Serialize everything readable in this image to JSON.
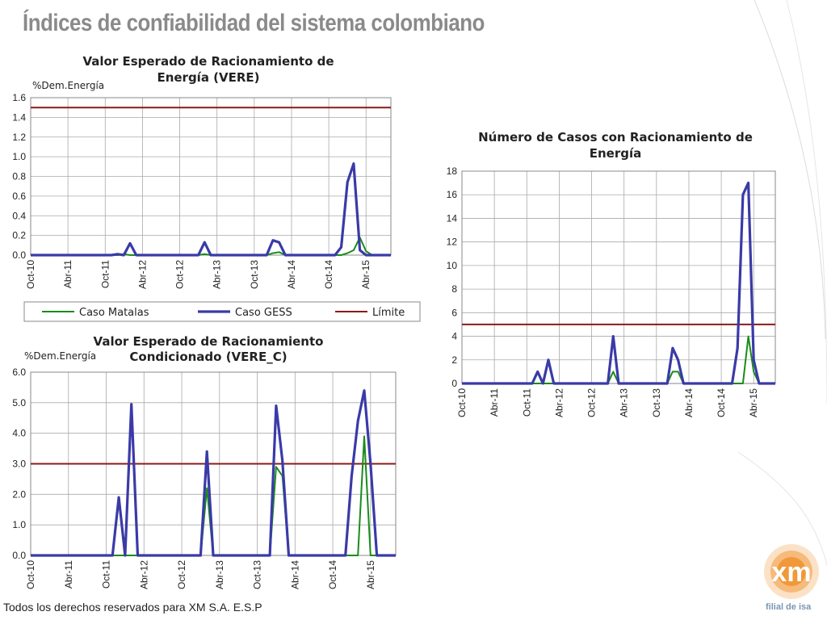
{
  "slide": {
    "title": "Índices de confiabilidad del sistema colombiano",
    "footer": "Todos los derechos reservados para XM S.A. E.S.P",
    "logo_text": "xm",
    "logo_subtext": "filial de isa"
  },
  "colors": {
    "caso_matalas": "#1a8c1a",
    "caso_gess": "#3a3aa8",
    "limite": "#8b1a1a",
    "logo_orange": "#f08a1e"
  },
  "chart_data": [
    {
      "type": "line",
      "title": "Valor Esperado de Racionamiento de Energía (VERE)",
      "ylabel": "%Dem.Energía",
      "ylim": [
        0,
        1.6
      ],
      "yticks": [
        "0.0",
        "0.2",
        "0.4",
        "0.6",
        "0.8",
        "1.0",
        "1.2",
        "1.4",
        "1.6"
      ],
      "xtick_labels": [
        "Oct-10",
        "Abr-11",
        "Oct-11",
        "Abr-12",
        "Oct-12",
        "Abr-13",
        "Oct-13",
        "Abr-14",
        "Oct-14",
        "Abr-15"
      ],
      "x_count": 59,
      "legend": [
        "Caso Matalas",
        "Caso GESS",
        "Límite"
      ],
      "legend_position": "bottom",
      "grid": true,
      "series": [
        {
          "name": "Caso Matalas",
          "color_key": "caso_matalas",
          "points": [
            [
              0,
              0
            ],
            [
              14,
              0
            ],
            [
              15,
              0.01
            ],
            [
              16,
              0
            ],
            [
              27,
              0
            ],
            [
              28,
              0.01
            ],
            [
              29,
              0
            ],
            [
              38,
              0
            ],
            [
              39,
              0.02
            ],
            [
              40,
              0.03
            ],
            [
              41,
              0
            ],
            [
              50,
              0
            ],
            [
              51,
              0.02
            ],
            [
              52,
              0.05
            ],
            [
              53,
              0.18
            ],
            [
              54,
              0.04
            ],
            [
              55,
              0
            ],
            [
              58,
              0
            ]
          ]
        },
        {
          "name": "Caso GESS",
          "color_key": "caso_gess",
          "points": [
            [
              0,
              0
            ],
            [
              13,
              0
            ],
            [
              14,
              0.01
            ],
            [
              15,
              0
            ],
            [
              16,
              0.12
            ],
            [
              17,
              0
            ],
            [
              27,
              0
            ],
            [
              28,
              0.13
            ],
            [
              29,
              0
            ],
            [
              38,
              0
            ],
            [
              39,
              0.15
            ],
            [
              40,
              0.13
            ],
            [
              41,
              0
            ],
            [
              49,
              0
            ],
            [
              50,
              0.08
            ],
            [
              51,
              0.74
            ],
            [
              52,
              0.93
            ],
            [
              53,
              0.05
            ],
            [
              54,
              0
            ],
            [
              58,
              0
            ]
          ]
        },
        {
          "name": "Límite",
          "color_key": "limite",
          "points": [
            [
              0,
              1.5
            ],
            [
              58,
              1.5
            ]
          ]
        }
      ]
    },
    {
      "type": "line",
      "title": "Valor Esperado de Racionamiento Condicionado (VERE_C)",
      "ylabel": "%Dem.Energía",
      "ylim": [
        0,
        6
      ],
      "yticks": [
        "0.0",
        "1.0",
        "2.0",
        "3.0",
        "4.0",
        "5.0",
        "6.0"
      ],
      "xtick_labels": [
        "Oct-10",
        "Abr-11",
        "Oct-11",
        "Abr-12",
        "Oct-12",
        "Abr-13",
        "Oct-13",
        "Abr-14",
        "Oct-14",
        "Abr-15"
      ],
      "x_count": 59,
      "grid": true,
      "series": [
        {
          "name": "Caso Matalas",
          "color_key": "caso_matalas",
          "points": [
            [
              0,
              0
            ],
            [
              27,
              0
            ],
            [
              28,
              2.2
            ],
            [
              29,
              0
            ],
            [
              38,
              0
            ],
            [
              39,
              2.9
            ],
            [
              40,
              2.6
            ],
            [
              41,
              0
            ],
            [
              52,
              0
            ],
            [
              53,
              3.9
            ],
            [
              54,
              0
            ],
            [
              58,
              0
            ]
          ]
        },
        {
          "name": "Caso GESS",
          "color_key": "caso_gess",
          "points": [
            [
              0,
              0
            ],
            [
              13,
              0
            ],
            [
              14,
              1.9
            ],
            [
              15,
              0
            ],
            [
              16,
              4.95
            ],
            [
              17,
              0
            ],
            [
              27,
              0
            ],
            [
              28,
              3.4
            ],
            [
              29,
              0
            ],
            [
              38,
              0
            ],
            [
              39,
              4.9
            ],
            [
              40,
              3.1
            ],
            [
              41,
              0
            ],
            [
              50,
              0
            ],
            [
              51,
              2.6
            ],
            [
              52,
              4.4
            ],
            [
              53,
              5.4
            ],
            [
              54,
              3.0
            ],
            [
              55,
              0
            ],
            [
              58,
              0
            ]
          ]
        },
        {
          "name": "Límite",
          "color_key": "limite",
          "points": [
            [
              0,
              3
            ],
            [
              58,
              3
            ]
          ]
        }
      ]
    },
    {
      "type": "line",
      "title": "Número de Casos con Racionamiento de Energía",
      "ylim": [
        0,
        18
      ],
      "yticks": [
        "0",
        "2",
        "4",
        "6",
        "8",
        "10",
        "12",
        "14",
        "16",
        "18"
      ],
      "xtick_labels": [
        "Oct-10",
        "Abr-11",
        "Oct-11",
        "Abr-12",
        "Oct-12",
        "Abr-13",
        "Oct-13",
        "Abr-14",
        "Oct-14",
        "Abr-15"
      ],
      "x_count": 59,
      "grid": true,
      "series": [
        {
          "name": "Caso Matalas",
          "color_key": "caso_matalas",
          "points": [
            [
              0,
              0
            ],
            [
              27,
              0
            ],
            [
              28,
              1
            ],
            [
              29,
              0
            ],
            [
              38,
              0
            ],
            [
              39,
              1
            ],
            [
              40,
              1
            ],
            [
              41,
              0
            ],
            [
              52,
              0
            ],
            [
              53,
              4
            ],
            [
              54,
              1
            ],
            [
              55,
              0
            ],
            [
              58,
              0
            ]
          ]
        },
        {
          "name": "Caso GESS",
          "color_key": "caso_gess",
          "points": [
            [
              0,
              0
            ],
            [
              13,
              0
            ],
            [
              14,
              1
            ],
            [
              15,
              0
            ],
            [
              16,
              2
            ],
            [
              17,
              0
            ],
            [
              27,
              0
            ],
            [
              28,
              4
            ],
            [
              29,
              0
            ],
            [
              38,
              0
            ],
            [
              39,
              3
            ],
            [
              40,
              2
            ],
            [
              41,
              0
            ],
            [
              50,
              0
            ],
            [
              51,
              3
            ],
            [
              52,
              16
            ],
            [
              53,
              17
            ],
            [
              54,
              2
            ],
            [
              55,
              0
            ],
            [
              58,
              0
            ]
          ]
        },
        {
          "name": "Límite",
          "color_key": "limite",
          "points": [
            [
              0,
              5
            ],
            [
              58,
              5
            ]
          ]
        }
      ]
    }
  ]
}
